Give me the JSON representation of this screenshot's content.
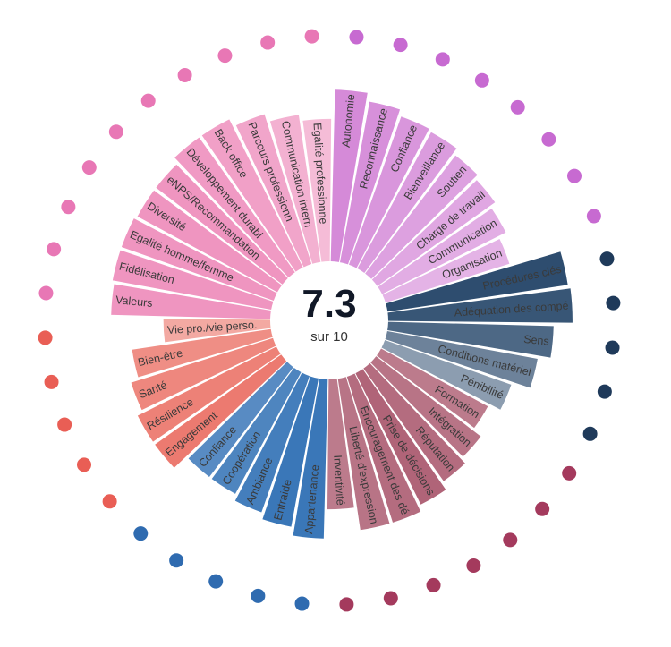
{
  "center": {
    "score": "7.3",
    "subtitle": "sur 10"
  },
  "chart_data": {
    "type": "bar",
    "layout": "radial",
    "scale_max": 10,
    "categories": [
      "Autonomie",
      "Reconnaissance",
      "Confiance",
      "Bienveillance",
      "Soutien",
      "Charge de travail",
      "Communication",
      "Organisation",
      "Procédures clés",
      "Adéquation des compé",
      "Sens",
      "Conditions matériel",
      "Pénibilité",
      "Formation",
      "Intégration",
      "Réputation",
      "Prise de décisions",
      "Encouragement des dé",
      "Liberté d'expression",
      "Inventivité",
      "Appartenance",
      "Entraide",
      "Ambiance",
      "Coopération",
      "Confiance",
      "Engagement",
      "Résilience",
      "Santé",
      "Bien-être",
      "Vie pro./vie perso.",
      "Valeurs",
      "Fidélisation",
      "Egalité homme/femme",
      "Diversité",
      "eNPS/Recommandation",
      "Développement durabl",
      "Back office",
      "Parcours professionn",
      "Communication intern",
      "Egalité professionne"
    ],
    "values": [
      8.2,
      7.8,
      7.5,
      7.4,
      7.1,
      6.9,
      6.6,
      6.2,
      8.7,
      8.8,
      7.9,
      7.3,
      6.4,
      5.8,
      6.3,
      6.6,
      7.0,
      7.3,
      7.3,
      6.2,
      7.6,
      7.2,
      6.9,
      6.6,
      6.6,
      7.4,
      7.4,
      7.1,
      6.7,
      5.1,
      7.6,
      7.7,
      7.7,
      7.6,
      7.6,
      7.9,
      7.9,
      7.5,
      7.1,
      6.8
    ],
    "groups": [
      {
        "color": "#d58ad8",
        "dot": "#c76ad1"
      },
      {
        "color": "#2e4d6f",
        "dot": "#1f3a5a"
      },
      {
        "color": "#b06478",
        "dot": "#a43a5d"
      },
      {
        "color": "#3a77b8",
        "dot": "#2f6bb0"
      },
      {
        "color": "#ec7a70",
        "dot": "#e95e55"
      },
      {
        "color": "#ee8fbd",
        "dot": "#e877b5"
      }
    ],
    "group_of_bar": [
      0,
      0,
      0,
      0,
      0,
      0,
      0,
      0,
      1,
      1,
      1,
      1,
      1,
      2,
      2,
      2,
      2,
      2,
      2,
      2,
      3,
      3,
      3,
      3,
      3,
      4,
      4,
      4,
      4,
      4,
      5,
      5,
      5,
      5,
      5,
      5,
      5,
      5,
      5,
      5
    ],
    "bar_lightness": [
      0.0,
      0.05,
      0.1,
      0.15,
      0.2,
      0.25,
      0.3,
      0.35,
      0.0,
      0.05,
      0.15,
      0.3,
      0.45,
      0.15,
      0.1,
      0.05,
      0.0,
      0.05,
      0.1,
      0.15,
      0.0,
      0.0,
      0.05,
      0.1,
      0.15,
      0.0,
      0.05,
      0.1,
      0.15,
      0.35,
      0.05,
      0.05,
      0.05,
      0.05,
      0.05,
      0.1,
      0.15,
      0.2,
      0.3,
      0.4
    ]
  }
}
